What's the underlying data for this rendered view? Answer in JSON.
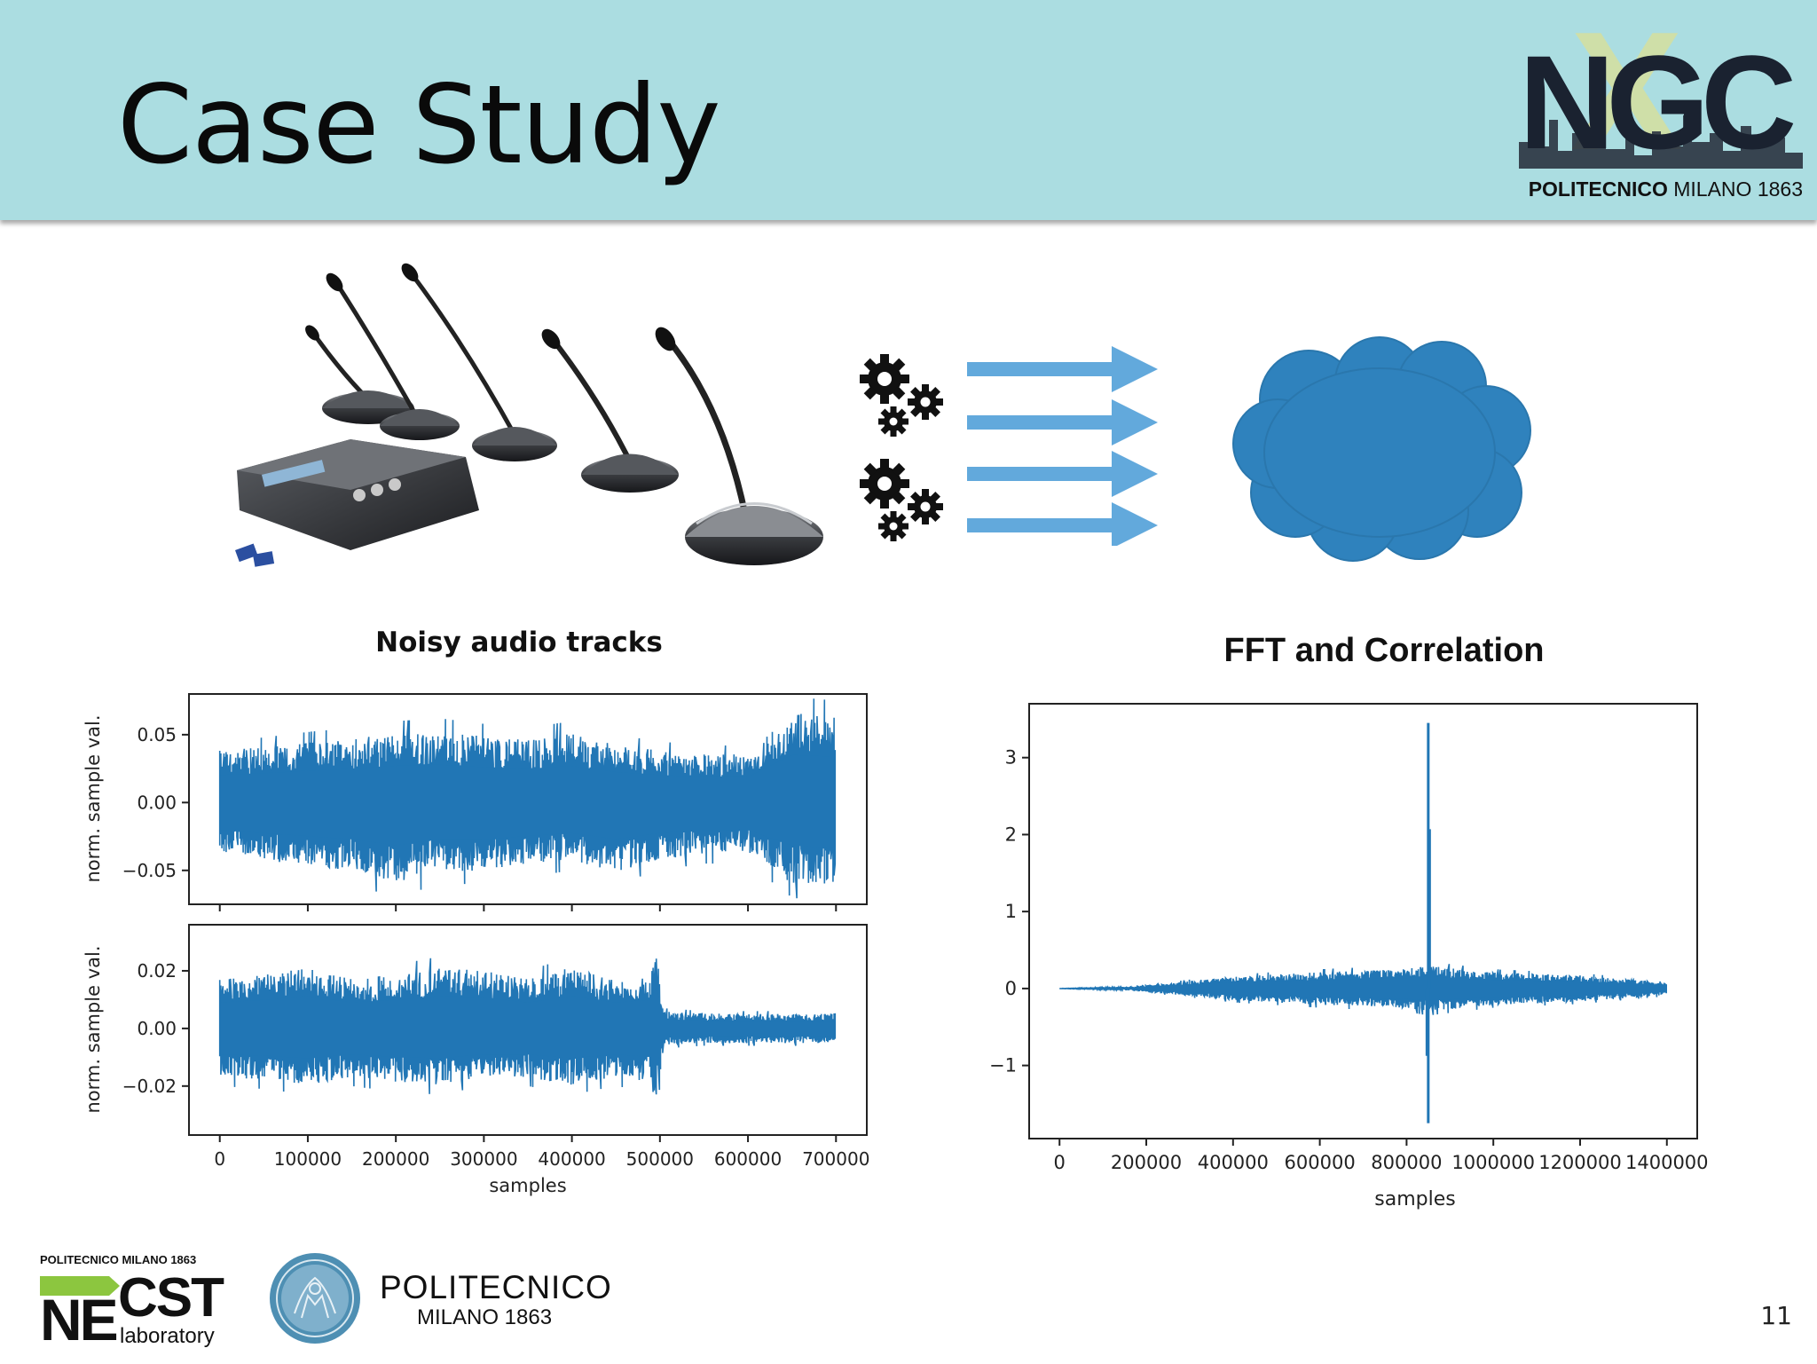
{
  "slide": {
    "title": "Case Study",
    "page_number": "11"
  },
  "header_logo": {
    "text": "NGC",
    "subtitle_bold": "POLITECNICO",
    "subtitle_light": "MILANO 1863"
  },
  "captions": {
    "noisy": "Noisy audio tracks",
    "fft": "FFT and Correlation"
  },
  "footer": {
    "necst_top": "POLITECNICO MILANO 1863",
    "necst_ne": "NE",
    "necst_cst": "CST",
    "necst_lab": "laboratory",
    "polimi_name": "POLITECNICO",
    "polimi_sub": "MILANO 1863"
  },
  "colors": {
    "header_bg": "#abdde1",
    "series": "#2176b5",
    "arrow": "#62a9dc",
    "cloud": "#2f82bd"
  },
  "chart_data": [
    {
      "type": "line",
      "title": "",
      "xlabel": "",
      "ylabel": "norm. sample val.",
      "xlim": [
        -35000,
        735000
      ],
      "ylim": [
        -0.075,
        0.08
      ],
      "yticks": [
        -0.05,
        0.0,
        0.05
      ],
      "ytick_labels": [
        "−0.05",
        "0.00",
        "0.05"
      ],
      "xticks_shared_with_below": true,
      "series": [
        {
          "envelope_x": [
            0,
            50000,
            100000,
            150000,
            200000,
            250000,
            300000,
            350000,
            400000,
            450000,
            500000,
            550000,
            600000,
            650000,
            700000
          ],
          "envelope_upper": [
            0.045,
            0.048,
            0.052,
            0.055,
            0.06,
            0.062,
            0.058,
            0.055,
            0.06,
            0.05,
            0.045,
            0.042,
            0.042,
            0.078,
            0.075
          ],
          "envelope_lower": [
            -0.045,
            -0.05,
            -0.055,
            -0.06,
            -0.07,
            -0.06,
            -0.06,
            -0.055,
            -0.05,
            -0.06,
            -0.05,
            -0.045,
            -0.045,
            -0.07,
            -0.075
          ]
        }
      ]
    },
    {
      "type": "line",
      "title": "",
      "xlabel": "samples",
      "ylabel": "norm. sample val.",
      "xlim": [
        -35000,
        735000
      ],
      "ylim": [
        -0.037,
        0.036
      ],
      "yticks": [
        -0.02,
        0.0,
        0.02
      ],
      "ytick_labels": [
        "−0.02",
        "0.00",
        "0.02"
      ],
      "xticks": [
        0,
        100000,
        200000,
        300000,
        400000,
        500000,
        600000,
        700000
      ],
      "xtick_labels": [
        "0",
        "100000",
        "200000",
        "300000",
        "400000",
        "500000",
        "600000",
        "700000"
      ],
      "series": [
        {
          "envelope_x": [
            0,
            50000,
            100000,
            150000,
            200000,
            250000,
            300000,
            350000,
            400000,
            450000,
            490000,
            495000,
            505000,
            550000,
            600000,
            650000,
            700000
          ],
          "envelope_upper": [
            0.02,
            0.022,
            0.025,
            0.02,
            0.022,
            0.025,
            0.024,
            0.02,
            0.025,
            0.02,
            0.022,
            0.034,
            0.007,
            0.006,
            0.006,
            0.006,
            0.006
          ],
          "envelope_lower": [
            -0.02,
            -0.021,
            -0.023,
            -0.02,
            -0.022,
            -0.023,
            -0.02,
            -0.02,
            -0.023,
            -0.02,
            -0.022,
            -0.033,
            -0.007,
            -0.006,
            -0.006,
            -0.006,
            -0.006
          ]
        }
      ]
    },
    {
      "type": "line",
      "title": "FFT and Correlation",
      "xlabel": "samples",
      "ylabel": "",
      "xlim": [
        -70000,
        1470000
      ],
      "ylim": [
        -1.95,
        3.7
      ],
      "yticks": [
        -1,
        0,
        1,
        2,
        3
      ],
      "ytick_labels": [
        "−1",
        "0",
        "1",
        "2",
        "3"
      ],
      "xticks": [
        0,
        200000,
        400000,
        600000,
        800000,
        1000000,
        1200000,
        1400000
      ],
      "xtick_labels": [
        "0",
        "200000",
        "400000",
        "600000",
        "800000",
        "1000000",
        "1200000",
        "1400000"
      ],
      "series": [
        {
          "envelope_x": [
            0,
            150000,
            200000,
            400000,
            600000,
            800000,
            850000,
            1000000,
            1200000,
            1400000
          ],
          "envelope_upper": [
            0.0,
            0.02,
            0.05,
            0.18,
            0.25,
            0.3,
            0.35,
            0.25,
            0.2,
            0.1
          ],
          "envelope_lower": [
            0.0,
            -0.02,
            -0.05,
            -0.18,
            -0.25,
            -0.3,
            -0.35,
            -0.25,
            -0.2,
            -0.1
          ],
          "peak": {
            "x": 850000,
            "max": 3.45,
            "min": -1.75
          }
        }
      ]
    }
  ]
}
